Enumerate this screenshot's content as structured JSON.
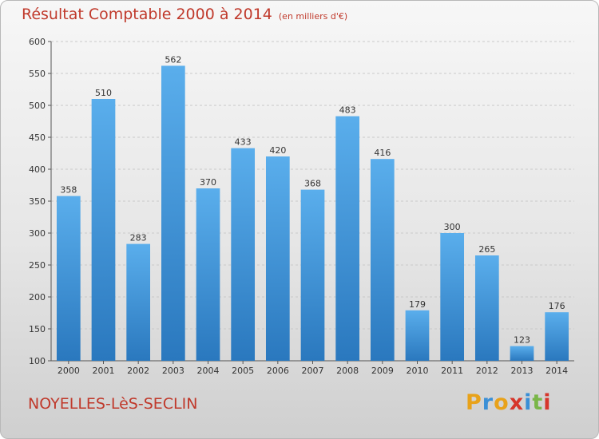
{
  "header": {
    "title": "Résultat Comptable 2000 à 2014",
    "unit": "(en milliers d'€)"
  },
  "footer": {
    "commune": "NOYELLES-LèS-SECLIN",
    "logo": "Proxiti"
  },
  "colors": {
    "title": "#c0392b",
    "bar_top": "#5aaeec",
    "bar_bottom": "#2a78be",
    "logo_letters": [
      "#e8a21a",
      "#3a8fd6",
      "#e8a21a",
      "#d6362b",
      "#3a8fd6",
      "#7ab648",
      "#d6362b"
    ]
  },
  "chart_data": {
    "type": "bar",
    "title": "Résultat Comptable 2000 à 2014",
    "subtitle": "(en milliers d'€)",
    "xlabel": "",
    "ylabel": "",
    "ylim": [
      100,
      600
    ],
    "yticks": [
      100,
      150,
      200,
      250,
      300,
      350,
      400,
      450,
      500,
      550,
      600
    ],
    "grid": true,
    "categories": [
      "2000",
      "2001",
      "2002",
      "2003",
      "2004",
      "2005",
      "2006",
      "2007",
      "2008",
      "2009",
      "2010",
      "2011",
      "2012",
      "2013",
      "2014"
    ],
    "values": [
      358,
      510,
      283,
      562,
      370,
      433,
      420,
      368,
      483,
      416,
      179,
      300,
      265,
      123,
      176
    ]
  }
}
